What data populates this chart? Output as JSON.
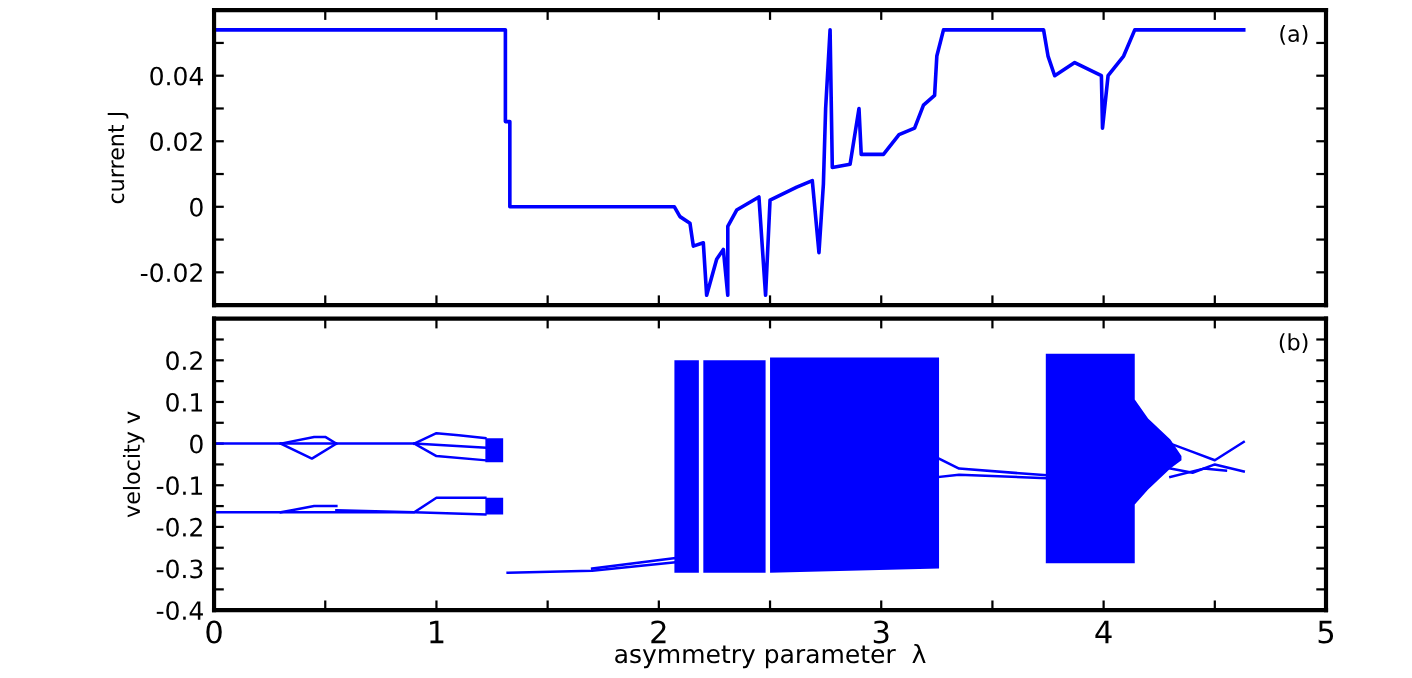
{
  "chart_data": [
    {
      "type": "step",
      "ylabel": "current J",
      "annotations": [
        "(a)"
      ],
      "xlim": [
        0,
        5
      ],
      "ylim": [
        -0.03,
        0.06
      ],
      "tick_labels": "y",
      "xticks": [
        {
          "value": 0,
          "label": null
        },
        {
          "value": 0.5,
          "label": null
        },
        {
          "value": 1,
          "label": null
        },
        {
          "value": 1.5,
          "label": null
        },
        {
          "value": 2,
          "label": null
        },
        {
          "value": 2.5,
          "label": null
        },
        {
          "value": 3,
          "label": null
        },
        {
          "value": 3.5,
          "label": null
        },
        {
          "value": 4,
          "label": null
        },
        {
          "value": 4.5,
          "label": null
        },
        {
          "value": 5,
          "label": null
        }
      ],
      "yticks": [
        {
          "value": -0.03,
          "label": null
        },
        {
          "value": -0.02,
          "label": "-0.02"
        },
        {
          "value": -0.01,
          "label": null
        },
        0,
        {
          "value": 0.01,
          "label": null
        },
        {
          "value": 0.02,
          "label": "0.02"
        },
        {
          "value": 0.03,
          "label": null
        },
        {
          "value": 0.04,
          "label": "0.04"
        },
        {
          "value": 0.05,
          "label": null
        }
      ],
      "series": [
        {
          "color": "#0000ff",
          "x": [
            0,
            1.31,
            1.31,
            1.33,
            1.33,
            2.07,
            2.095,
            2.14,
            2.155,
            2.2,
            2.215,
            2.26,
            2.29,
            2.31,
            2.31,
            2.35,
            2.45,
            2.48,
            2.5,
            2.62,
            2.69,
            2.72,
            2.74,
            2.75,
            2.77,
            2.78,
            2.86,
            2.9,
            2.91,
            3.01,
            3.08,
            3.15,
            3.19,
            3.24,
            3.25,
            3.28,
            3.73,
            3.75,
            3.78,
            3.87,
            3.99,
            3.995,
            4.02,
            4.09,
            4.14,
            4.63
          ],
          "values": [
            0.054,
            0.054,
            0.026,
            0.026,
            0,
            0,
            -0.003,
            -0.005,
            -0.012,
            -0.011,
            -0.027,
            -0.016,
            -0.013,
            -0.027,
            -0.006,
            -0.001,
            0.003,
            -0.027,
            0.002,
            0.006,
            0.008,
            -0.014,
            0.007,
            0.03,
            0.054,
            0.012,
            0.013,
            0.03,
            0.016,
            0.016,
            0.022,
            0.024,
            0.031,
            0.034,
            0.046,
            0.054,
            0.054,
            0.046,
            0.04,
            0.044,
            0.04,
            0.024,
            0.04,
            0.046,
            0.054,
            0.054
          ]
        }
      ]
    },
    {
      "type": "line",
      "xlabel": "asymmetry parameter  λ",
      "ylabel": "velocity v",
      "annotations": [
        "(b)"
      ],
      "xlim": [
        0,
        5
      ],
      "ylim": [
        -0.4,
        0.3
      ],
      "xticks": [
        0,
        {
          "value": 0.5,
          "label": null
        },
        1,
        {
          "value": 1.5,
          "label": null
        },
        2,
        {
          "value": 2.5,
          "label": null
        },
        3,
        {
          "value": 3.5,
          "label": null
        },
        4,
        {
          "value": 4.5,
          "label": null
        },
        5
      ],
      "yticks": [
        {
          "value": -0.4,
          "label": "-0.4"
        },
        {
          "value": -0.35,
          "label": null
        },
        {
          "value": -0.3,
          "label": "-0.3"
        },
        {
          "value": -0.25,
          "label": null
        },
        {
          "value": -0.2,
          "label": "-0.2"
        },
        {
          "value": -0.15,
          "label": null
        },
        {
          "value": -0.1,
          "label": "-0.1"
        },
        {
          "value": -0.05,
          "label": null
        },
        0,
        {
          "value": 0.05,
          "label": null
        },
        {
          "value": 0.1,
          "label": "0.1"
        },
        {
          "value": 0.15,
          "label": null
        },
        {
          "value": 0.2,
          "label": "0.2"
        },
        {
          "value": 0.25,
          "label": null
        }
      ],
      "series": [
        {
          "color": "#0000ff",
          "x": [
            0,
            0.3,
            0.55,
            0.9,
            1.22
          ],
          "values": [
            0,
            0,
            0,
            0,
            -0.01
          ]
        },
        {
          "color": "#0000ff",
          "x": [
            0.3,
            0.45,
            0.5,
            0.55
          ],
          "values": [
            0,
            0.016,
            0.016,
            0
          ]
        },
        {
          "color": "#0000ff",
          "x": [
            0.3,
            0.44,
            0.55
          ],
          "values": [
            0,
            -0.036,
            0
          ]
        },
        {
          "color": "#0000ff",
          "x": [
            0.9,
            1.0,
            1.1,
            1.22
          ],
          "values": [
            0,
            0.025,
            0.02,
            0.013
          ]
        },
        {
          "color": "#0000ff",
          "x": [
            0.9,
            1.0,
            1.22
          ],
          "values": [
            0,
            -0.03,
            -0.04
          ]
        },
        {
          "color": "#0000ff",
          "x": [
            0,
            0.3,
            0.9,
            1.22
          ],
          "values": [
            -0.165,
            -0.165,
            -0.165,
            -0.17
          ]
        },
        {
          "color": "#0000ff",
          "x": [
            0.3,
            0.45,
            0.55
          ],
          "values": [
            -0.165,
            -0.15,
            -0.15
          ]
        },
        {
          "color": "#0000ff",
          "x": [
            0.55,
            0.9,
            1.0,
            1.22
          ],
          "values": [
            -0.16,
            -0.165,
            -0.13,
            -0.13
          ]
        },
        {
          "color": "#0000ff",
          "x": [
            1.32,
            1.7,
            2.07
          ],
          "values": [
            -0.31,
            -0.305,
            -0.285
          ]
        },
        {
          "color": "#0000ff",
          "x": [
            1.7,
            2.07
          ],
          "values": [
            -0.3,
            -0.275
          ]
        },
        {
          "color": "#0000ff",
          "x": [
            3.26,
            3.35,
            3.74
          ],
          "values": [
            -0.036,
            -0.06,
            -0.076
          ]
        },
        {
          "color": "#0000ff",
          "x": [
            3.26,
            3.35,
            3.74
          ],
          "values": [
            -0.08,
            -0.075,
            -0.083
          ]
        },
        {
          "color": "#0000ff",
          "x": [
            4.3,
            4.4,
            4.5,
            4.63
          ],
          "values": [
            0,
            -0.02,
            -0.04,
            0.004
          ]
        },
        {
          "color": "#0000ff",
          "x": [
            4.3,
            4.4,
            4.5,
            4.63
          ],
          "values": [
            -0.06,
            -0.07,
            -0.05,
            -0.067
          ]
        },
        {
          "color": "#0000ff",
          "x": [
            4.3,
            4.45,
            4.55
          ],
          "values": [
            -0.08,
            -0.06,
            -0.065
          ]
        },
        {
          "type": "area",
          "color": "#0000ff",
          "x": [
            1.22,
            1.3,
            1.3,
            1.22
          ],
          "values": [
            0.013,
            0.013,
            -0.045,
            -0.045
          ]
        },
        {
          "type": "area",
          "color": "#0000ff",
          "x": [
            1.22,
            1.3,
            1.3,
            1.22
          ],
          "values": [
            -0.13,
            -0.13,
            -0.17,
            -0.17
          ]
        },
        {
          "type": "area",
          "color": "#0000ff",
          "x": [
            2.07,
            2.18,
            2.18,
            2.07
          ],
          "values": [
            0.2,
            0.2,
            -0.31,
            -0.31
          ]
        },
        {
          "type": "area",
          "color": "#0000ff",
          "x": [
            2.2,
            2.48,
            2.48,
            2.2
          ],
          "values": [
            0.2,
            0.2,
            -0.31,
            -0.31
          ]
        },
        {
          "type": "area",
          "color": "#0000ff",
          "x": [
            2.5,
            3.26,
            3.26,
            2.5
          ],
          "values": [
            0.207,
            0.207,
            -0.3,
            -0.31
          ]
        },
        {
          "type": "area",
          "color": "#0000ff",
          "x": [
            3.74,
            4.14,
            4.14,
            4.2,
            4.3,
            4.35,
            4.35,
            4.3,
            4.2,
            4.14,
            4.14,
            3.74
          ],
          "values": [
            0.216,
            0.216,
            0.106,
            0.06,
            0.01,
            -0.03,
            -0.04,
            -0.06,
            -0.11,
            -0.146,
            -0.287,
            -0.287
          ]
        }
      ]
    }
  ]
}
